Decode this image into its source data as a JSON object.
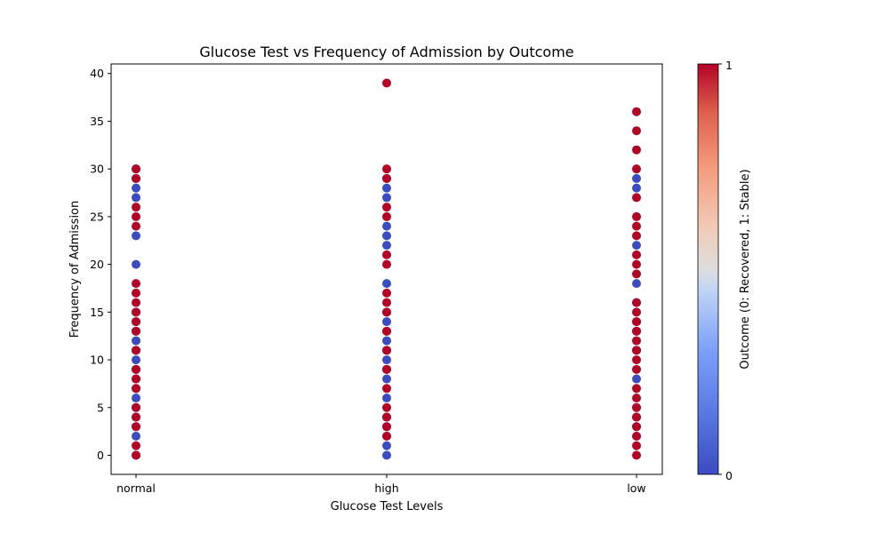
{
  "chart_data": {
    "type": "scatter",
    "title": "Glucose Test vs Frequency of Admission by Outcome",
    "xlabel": "Glucose Test Levels",
    "ylabel": "Frequency of Admission",
    "categories": [
      "normal",
      "high",
      "low"
    ],
    "ylim": [
      -2,
      41
    ],
    "yticks": [
      0,
      5,
      10,
      15,
      20,
      25,
      30,
      35,
      40
    ],
    "grid": false,
    "colorbar": {
      "label": "Outcome (0: Recovered, 1: Stable)",
      "ticks": [
        "0",
        "1"
      ],
      "colormap": "coolwarm",
      "low_color": "#3b4cc0",
      "mid_color": "#dddddd",
      "high_color": "#b40426"
    },
    "points": {
      "normal": {
        "outcome_0": [
          0,
          2,
          3,
          4,
          5,
          6,
          7,
          8,
          9,
          10,
          11,
          12,
          13,
          14,
          15,
          20,
          23,
          27,
          28,
          29,
          30
        ],
        "outcome_1": [
          0,
          1,
          3,
          4,
          5,
          7,
          8,
          9,
          11,
          13,
          14,
          15,
          16,
          17,
          18,
          24,
          25,
          26,
          29,
          30
        ]
      },
      "high": {
        "outcome_0": [
          0,
          1,
          2,
          3,
          4,
          6,
          8,
          9,
          10,
          11,
          12,
          13,
          14,
          15,
          18,
          22,
          23,
          24,
          27,
          28,
          29
        ],
        "outcome_1": [
          2,
          3,
          4,
          5,
          7,
          9,
          11,
          13,
          15,
          16,
          17,
          20,
          21,
          25,
          26,
          29,
          30,
          39
        ]
      },
      "low": {
        "outcome_0": [
          2,
          3,
          4,
          5,
          8,
          11,
          13,
          14,
          16,
          18,
          22,
          28,
          29
        ],
        "outcome_1": [
          0,
          1,
          2,
          3,
          4,
          5,
          6,
          7,
          9,
          10,
          11,
          12,
          13,
          14,
          15,
          16,
          19,
          20,
          21,
          23,
          24,
          25,
          27,
          30,
          32,
          34,
          36
        ]
      }
    }
  }
}
